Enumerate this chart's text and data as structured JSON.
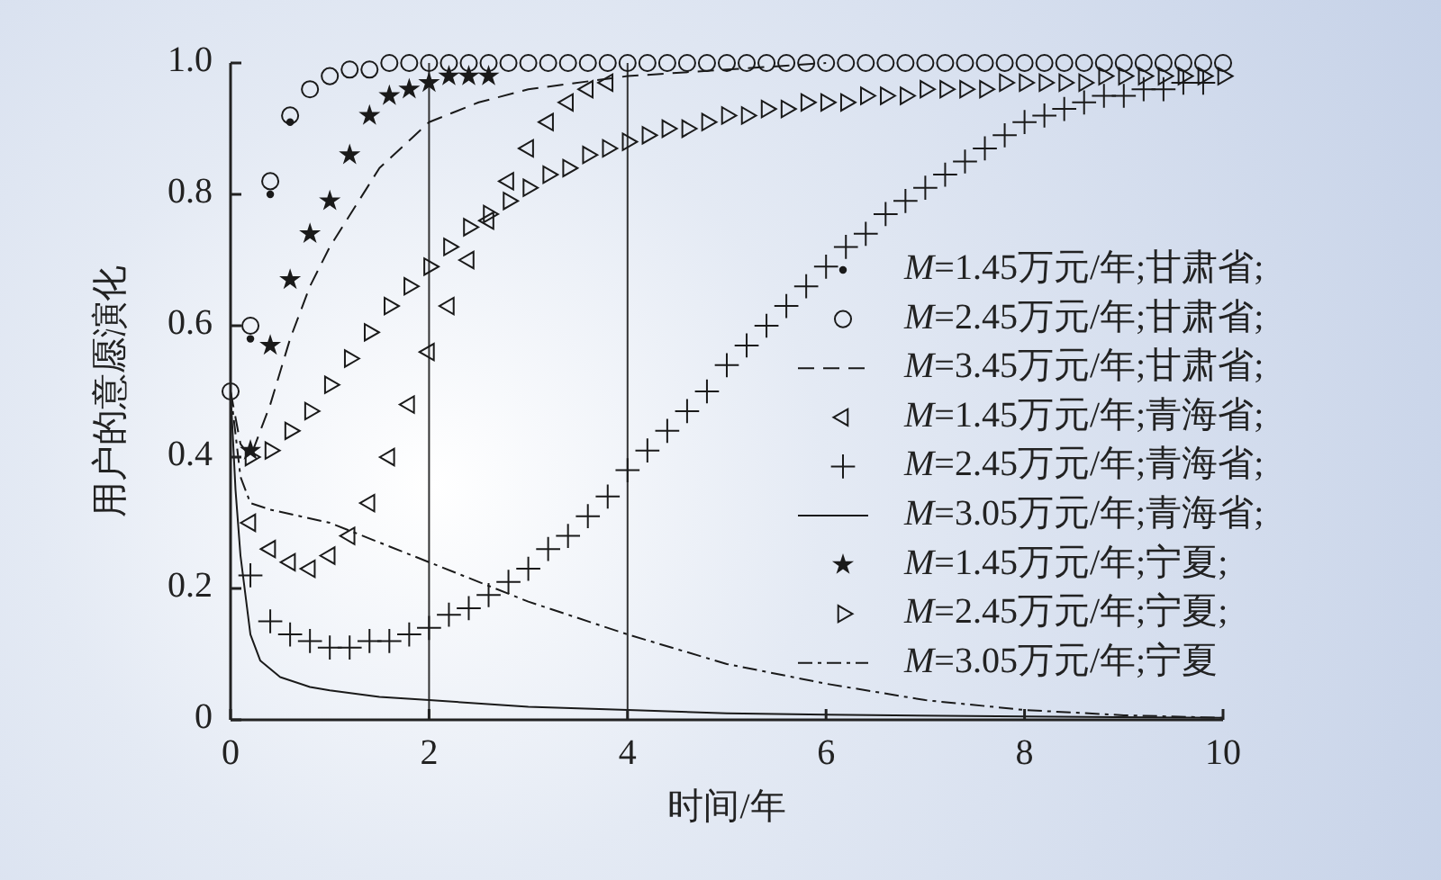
{
  "chart_data": {
    "type": "scatter",
    "xlabel": "时间/年",
    "ylabel": "用户的意愿演化",
    "x": [
      0,
      0.2,
      0.4,
      0.6,
      0.8,
      1,
      1.2,
      1.4,
      1.6,
      1.8,
      2,
      2.2,
      2.4,
      2.6,
      2.8,
      3,
      3.2,
      3.4,
      3.6,
      3.8,
      4,
      4.2,
      4.4,
      4.6,
      4.8,
      5,
      5.2,
      5.4,
      5.6,
      5.8,
      6,
      6.2,
      6.4,
      6.6,
      6.8,
      7,
      7.2,
      7.4,
      7.6,
      7.8,
      8,
      8.2,
      8.4,
      8.6,
      8.8,
      9,
      9.2,
      9.4,
      9.6,
      9.8,
      10
    ],
    "xlim": [
      0,
      10
    ],
    "xticks": [
      0,
      2,
      4,
      6,
      8,
      10
    ],
    "ylim": [
      0,
      1
    ],
    "yticks": [
      0,
      0.2,
      0.4,
      0.6,
      0.8,
      {
        "value": 1,
        "label": "1.0"
      }
    ],
    "legend": "right",
    "grid": false,
    "ref_lines": [
      {
        "axis": "x",
        "value": 2,
        "color": "#333333"
      },
      {
        "axis": "x",
        "value": 4,
        "color": "#333333"
      }
    ],
    "series": [
      {
        "name": "M=1.45万元/年;甘肃省;",
        "marker": "dot",
        "color": "#1a1a1a",
        "values": [
          null,
          0.58,
          0.8,
          0.91,
          null,
          null,
          null,
          null,
          null,
          null,
          null,
          null,
          null,
          null,
          null,
          null,
          null,
          null,
          null,
          null,
          null,
          null,
          null,
          null,
          null,
          null,
          null,
          null,
          null,
          null,
          null,
          null,
          null,
          null,
          null,
          null,
          null,
          null,
          null,
          null,
          null,
          null,
          null,
          null,
          null,
          null,
          null,
          null,
          null,
          null,
          null
        ]
      },
      {
        "name": "M=2.45万元/年;甘肃省;",
        "marker": "circle",
        "color": "#1a1a1a",
        "values": [
          0.5,
          0.6,
          0.82,
          0.92,
          0.96,
          0.98,
          0.99,
          0.99,
          1,
          1,
          1,
          1,
          1,
          1,
          1,
          1,
          1,
          1,
          1,
          1,
          1,
          1,
          1,
          1,
          1,
          1,
          1,
          1,
          1,
          1,
          1,
          1,
          1,
          1,
          1,
          1,
          1,
          1,
          1,
          1,
          1,
          1,
          1,
          1,
          1,
          1,
          1,
          1,
          1,
          1,
          1
        ]
      },
      {
        "name": "M=3.45万元/年;甘肃省;",
        "type": "line",
        "line_style": "dashed",
        "color": "#1a1a1a",
        "x": [
          0,
          0.1,
          0.2,
          0.4,
          0.6,
          0.8,
          1,
          1.5,
          2,
          2.5,
          3,
          4,
          5,
          6
        ],
        "values": [
          0.5,
          0.42,
          0.4,
          0.48,
          0.58,
          0.66,
          0.72,
          0.84,
          0.91,
          0.94,
          0.96,
          0.98,
          0.99,
          1
        ]
      },
      {
        "name": "M=1.45万元/年;青海省;",
        "marker": "triangle-left",
        "color": "#1a1a1a",
        "values": [
          null,
          0.3,
          0.26,
          0.24,
          0.23,
          0.25,
          0.28,
          0.33,
          0.4,
          0.48,
          0.56,
          0.63,
          0.7,
          0.76,
          0.82,
          0.87,
          0.91,
          0.94,
          0.96,
          0.97,
          null,
          null,
          null,
          null,
          null,
          null,
          null,
          null,
          null,
          null,
          null,
          null,
          null,
          null,
          null,
          null,
          null,
          null,
          null,
          null,
          null,
          null,
          null,
          null,
          null,
          null,
          null,
          null,
          null,
          null,
          null
        ]
      },
      {
        "name": "M=2.45万元/年;青海省;",
        "marker": "cross",
        "color": "#1a1a1a",
        "values": [
          null,
          0.22,
          0.15,
          0.13,
          0.12,
          0.11,
          0.11,
          0.12,
          0.12,
          0.13,
          0.14,
          0.16,
          0.17,
          0.19,
          0.21,
          0.23,
          0.26,
          0.28,
          0.31,
          0.34,
          0.38,
          0.41,
          0.44,
          0.47,
          0.5,
          0.54,
          0.57,
          0.6,
          0.63,
          0.66,
          0.69,
          0.72,
          0.74,
          0.77,
          0.79,
          0.81,
          0.83,
          0.85,
          0.87,
          0.89,
          0.91,
          0.92,
          0.93,
          0.94,
          0.95,
          0.95,
          0.96,
          0.96,
          0.97,
          0.97,
          null
        ]
      },
      {
        "name": "M=3.05万元/年;青海省;",
        "type": "line",
        "line_style": "solid",
        "color": "#1a1a1a",
        "x": [
          0,
          0.05,
          0.1,
          0.2,
          0.3,
          0.5,
          0.8,
          1,
          1.5,
          2,
          3,
          4,
          5,
          6,
          8,
          10
        ],
        "values": [
          0.5,
          0.35,
          0.25,
          0.13,
          0.09,
          0.065,
          0.05,
          0.045,
          0.035,
          0.03,
          0.02,
          0.015,
          0.01,
          0.008,
          0.005,
          0.003
        ]
      },
      {
        "name": "M=1.45万元/年;宁夏;",
        "marker": "star",
        "color": "#1a1a1a",
        "values": [
          null,
          0.41,
          0.57,
          0.67,
          0.74,
          0.79,
          0.86,
          0.92,
          0.95,
          0.96,
          0.97,
          0.98,
          0.98,
          0.98,
          null,
          null,
          null,
          null,
          null,
          null,
          null,
          null,
          null,
          null,
          null,
          null,
          null,
          null,
          null,
          null,
          null,
          null,
          null,
          null,
          null,
          null,
          null,
          null,
          null,
          null,
          null,
          null,
          null,
          null,
          null,
          null,
          null,
          null,
          null,
          null,
          null
        ]
      },
      {
        "name": "M=2.45万元/年;宁夏;",
        "marker": "triangle-right",
        "color": "#1a1a1a",
        "values": [
          null,
          0.4,
          0.41,
          0.44,
          0.47,
          0.51,
          0.55,
          0.59,
          0.63,
          0.66,
          0.69,
          0.72,
          0.75,
          0.77,
          0.79,
          0.81,
          0.83,
          0.84,
          0.86,
          0.87,
          0.88,
          0.89,
          0.9,
          0.9,
          0.91,
          0.92,
          0.92,
          0.93,
          0.93,
          0.94,
          0.94,
          0.94,
          0.95,
          0.95,
          0.95,
          0.96,
          0.96,
          0.96,
          0.96,
          0.97,
          0.97,
          0.97,
          0.97,
          0.97,
          0.98,
          0.98,
          0.98,
          0.98,
          0.98,
          0.98,
          0.98
        ]
      },
      {
        "name": "M=3.05万元/年;宁夏",
        "type": "line",
        "line_style": "dashdot",
        "color": "#1a1a1a",
        "x": [
          0,
          0.1,
          0.2,
          0.4,
          1,
          1.5,
          2,
          3,
          4,
          5,
          6,
          7,
          8,
          9,
          10
        ],
        "values": [
          0.5,
          0.37,
          0.33,
          0.32,
          0.3,
          0.27,
          0.24,
          0.18,
          0.13,
          0.085,
          0.055,
          0.03,
          0.015,
          0.007,
          0.003
        ]
      }
    ]
  }
}
